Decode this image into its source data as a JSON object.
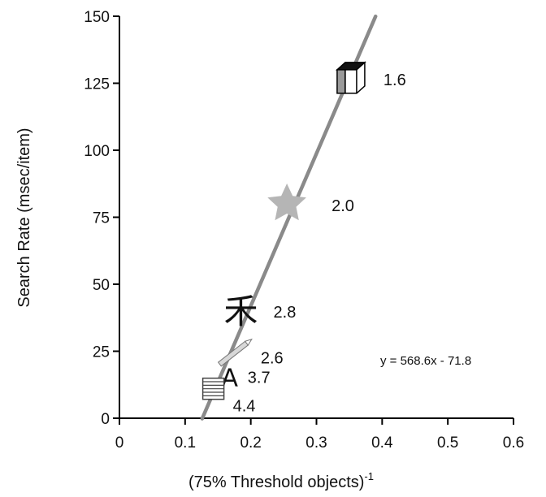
{
  "chart_data": {
    "type": "scatter",
    "xlabel": "(75% Threshold objects)",
    "xlabel_superscript": "-1",
    "ylabel": "Search Rate (msec/item)",
    "xlim": [
      0,
      0.6
    ],
    "ylim": [
      0,
      150
    ],
    "x_ticks": [
      0,
      0.1,
      0.2,
      0.3,
      0.4,
      0.5,
      0.6
    ],
    "x_tick_labels": [
      "0",
      "0.1",
      "0.2",
      "0.3",
      "0.4",
      "0.5",
      "0.6"
    ],
    "y_ticks": [
      0,
      25,
      50,
      75,
      100,
      125,
      150
    ],
    "y_tick_labels": [
      "0",
      "25",
      "50",
      "75",
      "100",
      "125",
      "150"
    ],
    "grid": false,
    "points": [
      {
        "label": "1.6",
        "icon": "cube-icon",
        "x": 0.35,
        "y": 127
      },
      {
        "label": "2.0",
        "icon": "star-icon",
        "x": 0.255,
        "y": 80
      },
      {
        "label": "2.8",
        "icon": "chinese-character-icon",
        "glyph": "禾",
        "x": 0.185,
        "y": 40
      },
      {
        "label": "2.6",
        "icon": "pencil-icon",
        "x": 0.178,
        "y": 25
      },
      {
        "label": "3.7",
        "icon": "letter-a-icon",
        "glyph": "A",
        "x": 0.168,
        "y": 15
      },
      {
        "label": "4.4",
        "icon": "striped-square-icon",
        "x": 0.143,
        "y": 11
      }
    ],
    "fit_line": {
      "equation": "y = 568.6x - 71.8",
      "slope": 568.6,
      "intercept": -71.8,
      "x_range": [
        0.126,
        0.39
      ]
    },
    "colors": {
      "fit_line": "#8a8a8a",
      "star": "#b5b5b5",
      "axis": "#000000"
    }
  }
}
